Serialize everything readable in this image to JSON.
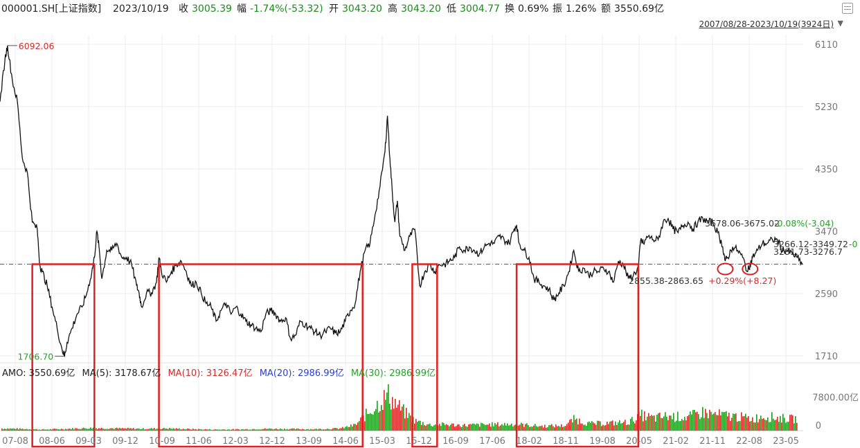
{
  "header": {
    "code": "000001.SH[上证指数]",
    "date": "2023/10/19",
    "close_label": "收",
    "close_value": "3005.39",
    "change_label": "幅",
    "change_value": "-1.74%(-53.32)",
    "open_label": "开",
    "open_value": "3043.20",
    "high_label": "高",
    "high_value": "3043.20",
    "low_label": "低",
    "low_value": "3004.77",
    "turnover_label": "换",
    "turnover_value": "0.69%",
    "amplitude_label": "振",
    "amplitude_value": "1.26%",
    "amount_label": "额",
    "amount_value": "3550.69亿",
    "range": "2007/08/28-2023/10/19(3924日)"
  },
  "colors": {
    "price_line": "#111111",
    "box": "#e02020",
    "ref_line": "#d42a2a",
    "vol_green": "#1f9a1f",
    "vol_red": "#d42a2a",
    "ma10": "#d42a2a",
    "ma20": "#2a3fd4",
    "ma30": "#2aa02a"
  },
  "chart_data": {
    "type": "line",
    "price_axis_ticks": [
      "6110",
      "5230",
      "4350",
      "3470",
      "2590",
      "1710"
    ],
    "ylim": [
      1710,
      6110
    ],
    "x_tick_labels": [
      "07-08",
      "08-06",
      "09-03",
      "09-12",
      "10-09",
      "11-06",
      "12-03",
      "12-12",
      "13-09",
      "14-06",
      "15-03",
      "15-12",
      "16-09",
      "17-06",
      "18-02",
      "18-11",
      "19-08",
      "20-05",
      "21-02",
      "21-11",
      "22-08",
      "23-05"
    ],
    "series": [
      {
        "values": [
          [
            2007.65,
            5300
          ],
          [
            2007.75,
            5900
          ],
          [
            2007.8,
            6092
          ],
          [
            2007.9,
            5600
          ],
          [
            2008.0,
            5300
          ],
          [
            2008.1,
            4500
          ],
          [
            2008.2,
            4300
          ],
          [
            2008.3,
            3600
          ],
          [
            2008.4,
            3500
          ],
          [
            2008.45,
            3000
          ],
          [
            2008.5,
            2900
          ],
          [
            2008.6,
            2700
          ],
          [
            2008.7,
            2400
          ],
          [
            2008.8,
            2100
          ],
          [
            2008.9,
            1800
          ],
          [
            2008.95,
            1706
          ],
          [
            2009.0,
            1900
          ],
          [
            2009.1,
            2100
          ],
          [
            2009.2,
            2300
          ],
          [
            2009.3,
            2400
          ],
          [
            2009.4,
            2600
          ],
          [
            2009.5,
            2900
          ],
          [
            2009.55,
            3100
          ],
          [
            2009.6,
            3470
          ],
          [
            2009.65,
            3200
          ],
          [
            2009.7,
            2800
          ],
          [
            2009.8,
            3200
          ],
          [
            2009.9,
            3200
          ],
          [
            2010.0,
            3300
          ],
          [
            2010.1,
            3100
          ],
          [
            2010.2,
            3100
          ],
          [
            2010.3,
            3000
          ],
          [
            2010.4,
            2700
          ],
          [
            2010.45,
            2600
          ],
          [
            2010.5,
            2400
          ],
          [
            2010.6,
            2600
          ],
          [
            2010.7,
            2600
          ],
          [
            2010.8,
            2750
          ],
          [
            2010.85,
            3100
          ],
          [
            2010.9,
            2900
          ],
          [
            2011.0,
            2750
          ],
          [
            2011.1,
            2900
          ],
          [
            2011.2,
            3000
          ],
          [
            2011.3,
            3050
          ],
          [
            2011.4,
            2900
          ],
          [
            2011.5,
            2700
          ],
          [
            2011.6,
            2750
          ],
          [
            2011.7,
            2600
          ],
          [
            2011.8,
            2450
          ],
          [
            2011.9,
            2400
          ],
          [
            2012.0,
            2200
          ],
          [
            2012.1,
            2350
          ],
          [
            2012.2,
            2450
          ],
          [
            2012.3,
            2300
          ],
          [
            2012.4,
            2400
          ],
          [
            2012.5,
            2300
          ],
          [
            2012.6,
            2200
          ],
          [
            2012.7,
            2150
          ],
          [
            2012.8,
            2100
          ],
          [
            2012.9,
            2050
          ],
          [
            2013.0,
            2300
          ],
          [
            2013.1,
            2350
          ],
          [
            2013.2,
            2300
          ],
          [
            2013.3,
            2200
          ],
          [
            2013.4,
            2250
          ],
          [
            2013.5,
            1950
          ],
          [
            2013.6,
            2000
          ],
          [
            2013.7,
            2200
          ],
          [
            2013.8,
            2150
          ],
          [
            2013.9,
            2100
          ],
          [
            2014.0,
            2050
          ],
          [
            2014.1,
            2000
          ],
          [
            2014.2,
            2050
          ],
          [
            2014.3,
            2100
          ],
          [
            2014.4,
            2030
          ],
          [
            2014.5,
            2050
          ],
          [
            2014.6,
            2200
          ],
          [
            2014.7,
            2350
          ],
          [
            2014.8,
            2450
          ],
          [
            2014.9,
            2900
          ],
          [
            2015.0,
            3200
          ],
          [
            2015.1,
            3300
          ],
          [
            2015.2,
            3700
          ],
          [
            2015.3,
            4100
          ],
          [
            2015.4,
            4600
          ],
          [
            2015.45,
            5100
          ],
          [
            2015.5,
            4500
          ],
          [
            2015.55,
            4000
          ],
          [
            2015.6,
            3600
          ],
          [
            2015.65,
            3900
          ],
          [
            2015.7,
            3400
          ],
          [
            2015.8,
            3200
          ],
          [
            2015.9,
            3400
          ],
          [
            2016.0,
            3500
          ],
          [
            2016.1,
            2700
          ],
          [
            2016.2,
            2900
          ],
          [
            2016.3,
            3000
          ],
          [
            2016.4,
            2900
          ],
          [
            2016.5,
            3000
          ],
          [
            2016.6,
            3000
          ],
          [
            2016.7,
            3050
          ],
          [
            2016.8,
            3100
          ],
          [
            2016.9,
            3250
          ],
          [
            2017.0,
            3200
          ],
          [
            2017.1,
            3250
          ],
          [
            2017.2,
            3200
          ],
          [
            2017.3,
            3150
          ],
          [
            2017.4,
            3250
          ],
          [
            2017.5,
            3300
          ],
          [
            2017.6,
            3300
          ],
          [
            2017.7,
            3400
          ],
          [
            2017.8,
            3350
          ],
          [
            2017.9,
            3300
          ],
          [
            2018.0,
            3500
          ],
          [
            2018.05,
            3560
          ],
          [
            2018.1,
            3300
          ],
          [
            2018.2,
            3200
          ],
          [
            2018.3,
            3100
          ],
          [
            2018.4,
            2800
          ],
          [
            2018.5,
            2750
          ],
          [
            2018.6,
            2700
          ],
          [
            2018.7,
            2650
          ],
          [
            2018.8,
            2500
          ],
          [
            2018.9,
            2600
          ],
          [
            2019.0,
            2700
          ],
          [
            2019.1,
            2900
          ],
          [
            2019.2,
            3200
          ],
          [
            2019.3,
            2900
          ],
          [
            2019.4,
            2950
          ],
          [
            2019.5,
            2850
          ],
          [
            2019.6,
            2900
          ],
          [
            2019.7,
            2900
          ],
          [
            2019.8,
            2950
          ],
          [
            2019.9,
            2900
          ],
          [
            2020.0,
            2750
          ],
          [
            2020.1,
            3050
          ],
          [
            2020.2,
            3000
          ],
          [
            2020.3,
            2800
          ],
          [
            2020.4,
            2850
          ],
          [
            2020.5,
            2950
          ],
          [
            2020.55,
            3350
          ],
          [
            2020.6,
            3300
          ],
          [
            2020.7,
            3400
          ],
          [
            2020.8,
            3350
          ],
          [
            2020.9,
            3350
          ],
          [
            2021.0,
            3600
          ],
          [
            2021.1,
            3650
          ],
          [
            2021.2,
            3500
          ],
          [
            2021.3,
            3450
          ],
          [
            2021.4,
            3550
          ],
          [
            2021.5,
            3600
          ],
          [
            2021.6,
            3500
          ],
          [
            2021.7,
            3600
          ],
          [
            2021.8,
            3650
          ],
          [
            2021.9,
            3600
          ],
          [
            2022.0,
            3600
          ],
          [
            2022.1,
            3450
          ],
          [
            2022.2,
            3250
          ],
          [
            2022.25,
            3050
          ],
          [
            2022.3,
            3100
          ],
          [
            2022.4,
            3250
          ],
          [
            2022.5,
            3200
          ],
          [
            2022.6,
            3100
          ],
          [
            2022.7,
            2900
          ],
          [
            2022.75,
            3000
          ],
          [
            2022.8,
            3100
          ],
          [
            2022.9,
            3200
          ],
          [
            2023.0,
            3300
          ],
          [
            2023.1,
            3300
          ],
          [
            2023.2,
            3350
          ],
          [
            2023.3,
            3350
          ],
          [
            2023.4,
            3200
          ],
          [
            2023.5,
            3200
          ],
          [
            2023.6,
            3150
          ],
          [
            2023.7,
            3100
          ],
          [
            2023.8,
            3005
          ]
        ]
      }
    ],
    "reference_line": 3005.39,
    "volume_axis_ticks": [
      "7800.00亿",
      "0"
    ],
    "volume_max": 9500,
    "volume_bands": [
      [
        2007.65,
        600
      ],
      [
        2008.0,
        500
      ],
      [
        2008.5,
        300
      ],
      [
        2009.0,
        500
      ],
      [
        2009.5,
        700
      ],
      [
        2010.0,
        600
      ],
      [
        2010.5,
        500
      ],
      [
        2011.0,
        600
      ],
      [
        2011.5,
        400
      ],
      [
        2012.0,
        300
      ],
      [
        2012.5,
        350
      ],
      [
        2013.0,
        500
      ],
      [
        2013.5,
        450
      ],
      [
        2014.0,
        400
      ],
      [
        2014.5,
        600
      ],
      [
        2014.8,
        1500
      ],
      [
        2015.0,
        4000
      ],
      [
        2015.3,
        7500
      ],
      [
        2015.45,
        9200
      ],
      [
        2015.6,
        7000
      ],
      [
        2015.8,
        4500
      ],
      [
        2016.0,
        2500
      ],
      [
        2016.3,
        1500
      ],
      [
        2016.6,
        1600
      ],
      [
        2017.0,
        1400
      ],
      [
        2017.5,
        1600
      ],
      [
        2018.0,
        1700
      ],
      [
        2018.5,
        1200
      ],
      [
        2019.0,
        1300
      ],
      [
        2019.2,
        3000
      ],
      [
        2019.5,
        1800
      ],
      [
        2020.0,
        2000
      ],
      [
        2020.3,
        2200
      ],
      [
        2020.55,
        4000
      ],
      [
        2020.8,
        3200
      ],
      [
        2021.0,
        3700
      ],
      [
        2021.5,
        3500
      ],
      [
        2021.8,
        4800
      ],
      [
        2022.0,
        4200
      ],
      [
        2022.5,
        3600
      ],
      [
        2022.8,
        3000
      ],
      [
        2023.0,
        3800
      ],
      [
        2023.3,
        3300
      ],
      [
        2023.6,
        3000
      ],
      [
        2023.8,
        3100
      ]
    ],
    "annotations": {
      "max_label": "6092.06",
      "min_label": "1706.70",
      "seg1": "3678.06-3675.02",
      "seg1_pct": "-0.08%(-3.04)",
      "seg2": "3266.12-3349.72",
      "seg2_pct": "-0",
      "seg3": "3281.73-3276.7",
      "seg4": "2855.38-2863.65",
      "seg4_pct": "+0.29%(+8.27)"
    },
    "boxes": [
      [
        2008.3,
        2009.55
      ],
      [
        2010.85,
        2014.95
      ],
      [
        2015.95,
        2016.45
      ],
      [
        2018.05,
        2020.5
      ]
    ],
    "circles": [
      2022.25,
      2022.75
    ],
    "legend": {
      "amo": "AMO: 3550.69亿",
      "ma5": "MA(5): 3178.67亿",
      "ma10": "MA(10): 3126.47亿",
      "ma20": "MA(20): 2986.99亿",
      "ma30": "MA(30): 2986.99亿"
    }
  }
}
